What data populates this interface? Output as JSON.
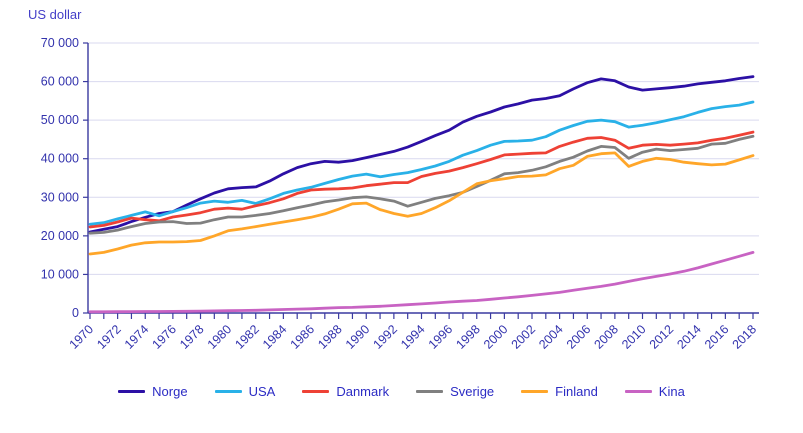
{
  "chart_data": {
    "type": "line",
    "title": "US dollar",
    "xlabel": "",
    "ylabel": "US dollar",
    "ylim": [
      0,
      70000
    ],
    "grid": "horizontal",
    "legend_position": "bottom",
    "x": [
      1970,
      1971,
      1972,
      1973,
      1974,
      1975,
      1976,
      1977,
      1978,
      1979,
      1980,
      1981,
      1982,
      1983,
      1984,
      1985,
      1986,
      1987,
      1988,
      1989,
      1990,
      1991,
      1992,
      1993,
      1994,
      1995,
      1996,
      1997,
      1998,
      1999,
      2000,
      2001,
      2002,
      2003,
      2004,
      2005,
      2006,
      2007,
      2008,
      2009,
      2010,
      2011,
      2012,
      2013,
      2014,
      2015,
      2016,
      2017,
      2018
    ],
    "x_tick_labels": [
      "1970",
      "1972",
      "1974",
      "1976",
      "1978",
      "1980",
      "1982",
      "1984",
      "1986",
      "1988",
      "1990",
      "1992",
      "1994",
      "1996",
      "1998",
      "2000",
      "2002",
      "2004",
      "2006",
      "2008",
      "2010",
      "2012",
      "2014",
      "2016",
      "2018"
    ],
    "y_ticks": [
      0,
      10000,
      20000,
      30000,
      40000,
      50000,
      60000,
      70000
    ],
    "y_tick_labels": [
      "0",
      "10 000",
      "20 000",
      "30 000",
      "40 000",
      "50 000",
      "60 000",
      "70 000"
    ],
    "series": [
      {
        "id": "norge",
        "name": "Norge",
        "color": "#2c10a5",
        "values": [
          21000,
          21700,
          22400,
          23700,
          24800,
          25800,
          26300,
          28000,
          29600,
          31100,
          32200,
          32500,
          32700,
          34200,
          36100,
          37700,
          38700,
          39300,
          39100,
          39500,
          40300,
          41100,
          41900,
          43000,
          44500,
          46000,
          47400,
          49500,
          51000,
          52100,
          53400,
          54200,
          55200,
          55600,
          56300,
          58100,
          59700,
          60700,
          60200,
          58600,
          57800,
          58100,
          58400,
          58800,
          59400,
          59800,
          60200,
          60800,
          61300
        ]
      },
      {
        "id": "usa",
        "name": "USA",
        "color": "#29b1e8",
        "values": [
          23000,
          23400,
          24400,
          25300,
          26200,
          25200,
          26300,
          27300,
          28500,
          29000,
          28700,
          29200,
          28400,
          29600,
          31000,
          31900,
          32600,
          33600,
          34600,
          35500,
          36000,
          35300,
          35900,
          36400,
          37200,
          38100,
          39300,
          40900,
          42100,
          43500,
          44500,
          44600,
          44800,
          45700,
          47400,
          48600,
          49700,
          50000,
          49600,
          48200,
          48700,
          49300,
          50100,
          50900,
          52000,
          53000,
          53500,
          53900,
          54700
        ]
      },
      {
        "id": "danmark",
        "name": "Danmark",
        "color": "#ee4135",
        "values": [
          22300,
          22700,
          23600,
          24600,
          24200,
          23900,
          24900,
          25400,
          26000,
          26900,
          27200,
          26900,
          27800,
          28600,
          29600,
          31000,
          31900,
          32100,
          32200,
          32400,
          33000,
          33400,
          33800,
          33800,
          35400,
          36200,
          36800,
          37700,
          38700,
          39800,
          41000,
          41200,
          41400,
          41500,
          43200,
          44300,
          45300,
          45500,
          44800,
          42700,
          43500,
          43700,
          43500,
          43800,
          44100,
          44800,
          45300,
          46100,
          46900
        ]
      },
      {
        "id": "sverige",
        "name": "Sverige",
        "color": "#808080",
        "values": [
          20700,
          20900,
          21500,
          22400,
          23200,
          23600,
          23700,
          23200,
          23300,
          24200,
          24900,
          24900,
          25300,
          25800,
          26500,
          27300,
          28000,
          28800,
          29300,
          29900,
          30100,
          29600,
          29000,
          27700,
          28700,
          29700,
          30400,
          31300,
          32800,
          34400,
          36100,
          36400,
          37000,
          37900,
          39300,
          40400,
          42000,
          43200,
          42900,
          40100,
          41700,
          42500,
          42100,
          42400,
          42700,
          43800,
          44000,
          45000,
          45800
        ]
      },
      {
        "id": "finland",
        "name": "Finland",
        "color": "#ffa629",
        "values": [
          15300,
          15700,
          16600,
          17600,
          18200,
          18400,
          18400,
          18500,
          18800,
          20000,
          21300,
          21800,
          22400,
          23000,
          23600,
          24200,
          24800,
          25700,
          26900,
          28300,
          28500,
          26800,
          25800,
          25100,
          25800,
          27300,
          29100,
          31300,
          33500,
          34300,
          34800,
          35400,
          35500,
          35800,
          37400,
          38300,
          40600,
          41300,
          41500,
          38000,
          39300,
          40100,
          39800,
          39100,
          38700,
          38400,
          38600,
          39700,
          40800
        ]
      },
      {
        "id": "kina",
        "name": "Kina",
        "color": "#c863c3",
        "values": [
          300,
          320,
          340,
          360,
          380,
          400,
          420,
          450,
          500,
          550,
          600,
          650,
          700,
          800,
          900,
          1000,
          1100,
          1250,
          1400,
          1450,
          1600,
          1750,
          1950,
          2150,
          2350,
          2600,
          2850,
          3050,
          3250,
          3550,
          3900,
          4200,
          4550,
          4950,
          5350,
          5900,
          6400,
          6900,
          7500,
          8200,
          8900,
          9500,
          10100,
          10800,
          11700,
          12700,
          13700,
          14700,
          15700
        ]
      }
    ],
    "style": {
      "grid_color": "#d9d9ef",
      "axis_color": "#3a3aa0",
      "label_color": "#3333ad",
      "title_color": "#443fc8",
      "legend_text_color": "#2b2bc4",
      "background": "#ffffff"
    }
  }
}
